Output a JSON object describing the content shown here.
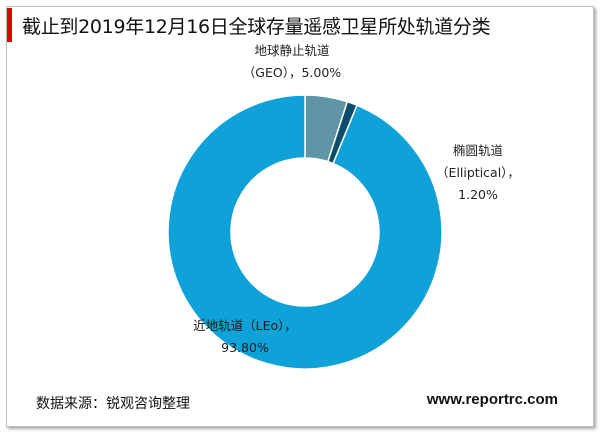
{
  "title": "截止到2019年12月16日全球存量遥感卫星所处轨道分类",
  "source": "数据来源：锐观咨询整理",
  "website": "www.reportrc.com",
  "colors": {
    "accent": "#e00000",
    "geo": "#5f95a7",
    "elliptical": "#0c4c6b",
    "leo": "#0ea2d8"
  },
  "chart_data": {
    "type": "pie",
    "variant": "donut",
    "slices": [
      {
        "key": "geo",
        "name": "地球静止轨道",
        "sub": "（GEO）",
        "value": 5.0,
        "pct_label": "5.00%",
        "color": "#5f95a7"
      },
      {
        "key": "elliptical",
        "name": "椭圆轨道",
        "sub": "（Elliptical）",
        "value": 1.2,
        "pct_label": "1.20%",
        "color": "#0c4c6b"
      },
      {
        "key": "leo",
        "name": "近地轨道",
        "sub": "（LEo）",
        "value": 93.8,
        "pct_label": "93.80%",
        "color": "#0ea2d8"
      }
    ],
    "labels": {
      "geo": {
        "line1": "地球静止轨道",
        "line2": "（GEO），5.00%"
      },
      "elliptical": {
        "line1": "椭圆轨道",
        "line2": "（Elliptical），",
        "line3": "1.20%"
      },
      "leo": {
        "line1": "近地轨道（LEo），",
        "line2": "93.80%"
      }
    }
  }
}
